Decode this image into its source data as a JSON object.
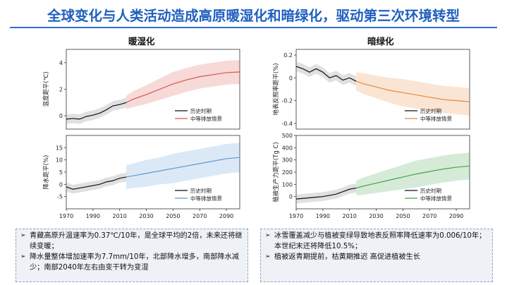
{
  "page": {
    "title": "全球变化与人类活动造成高原暖湿化和暗绿化，驱动第三次环境转型",
    "left_heading": "暖湿化",
    "right_heading": "暗绿化"
  },
  "notes_left": [
    "青藏高原升温速率为0.37℃/10年，是全球平均的2倍，未来还将继续变暖；",
    "降水量整体增加速率为7.7mm/10年，北部降水增多，南部降水减少；南部2040年左右由变干转为变湿"
  ],
  "notes_right": [
    "冰雪覆盖减少与植被变绿导致地表反照率降低速率为0.006/10年；本世纪末还将降低10.5%；",
    "植被返青期提前，枯黄期推迟 高促进植被生长"
  ],
  "colors": {
    "title": "#1f5fbf",
    "historical": "#111111",
    "temp_scenario": "#d9534f",
    "precip_scenario": "#5b9bd5",
    "albedo_scenario": "#e8893a",
    "gpp_scenario": "#3fa34d"
  },
  "chart_data": [
    {
      "type": "line",
      "id": "temperature",
      "xlabel": "",
      "ylabel": "温度距平(℃)",
      "xlim": [
        1970,
        2100
      ],
      "ylim": [
        -1,
        5
      ],
      "yticks": [
        0,
        2,
        4
      ],
      "xticks": [],
      "series": [
        {
          "name": "历史时期",
          "x": [
            1970,
            1975,
            1980,
            1985,
            1990,
            1995,
            2000,
            2005,
            2010,
            2015
          ],
          "y": [
            -0.25,
            -0.2,
            -0.25,
            -0.05,
            0.05,
            0.2,
            0.45,
            0.75,
            0.85,
            1.0
          ]
        },
        {
          "name": "中等排放情景",
          "x": [
            2015,
            2020,
            2030,
            2040,
            2050,
            2060,
            2070,
            2080,
            2090,
            2100
          ],
          "y": [
            1.0,
            1.25,
            1.6,
            2.0,
            2.4,
            2.7,
            2.95,
            3.1,
            3.25,
            3.3
          ],
          "band": [
            0.5,
            0.6,
            0.7,
            0.8,
            0.9,
            0.9,
            0.9,
            0.9,
            0.9,
            0.9
          ]
        }
      ]
    },
    {
      "type": "line",
      "id": "precipitation",
      "xlabel": "",
      "ylabel": "降水距平(%)",
      "xlim": [
        1970,
        2100
      ],
      "ylim": [
        -10,
        20
      ],
      "yticks": [
        -5,
        0,
        5,
        10,
        15
      ],
      "xticks": [
        1970,
        1990,
        2010,
        2030,
        2050,
        2070,
        2090
      ],
      "series": [
        {
          "name": "历史时期",
          "x": [
            1970,
            1975,
            1980,
            1985,
            1990,
            1995,
            2000,
            2005,
            2010,
            2015
          ],
          "y": [
            -1,
            -2,
            -1.5,
            -1,
            -0.5,
            0,
            1,
            1.5,
            2.5,
            3
          ]
        },
        {
          "name": "中等排放情景",
          "x": [
            2015,
            2020,
            2030,
            2040,
            2050,
            2060,
            2070,
            2080,
            2090,
            2100
          ],
          "y": [
            3,
            3.5,
            4.5,
            5.5,
            6.5,
            7.5,
            8.5,
            9.5,
            10.5,
            11
          ],
          "band": [
            5,
            5,
            5.5,
            5.5,
            6,
            6,
            6,
            6,
            6,
            6
          ]
        }
      ]
    },
    {
      "type": "line",
      "id": "albedo",
      "xlabel": "",
      "ylabel": "地表反照率距平(%)",
      "xlim": [
        1970,
        2100
      ],
      "ylim": [
        -0.45,
        0.25
      ],
      "yticks": [
        0.2,
        0,
        -0.2,
        -0.4
      ],
      "xticks": [],
      "series": [
        {
          "name": "历史时期",
          "x": [
            1970,
            1975,
            1980,
            1985,
            1990,
            1995,
            2000,
            2005,
            2010,
            2015
          ],
          "y": [
            0.1,
            0.08,
            0.05,
            0.08,
            0.05,
            0.0,
            0.02,
            -0.02,
            0.0,
            -0.03
          ]
        },
        {
          "name": "中等排放情景",
          "x": [
            2015,
            2020,
            2030,
            2040,
            2050,
            2060,
            2070,
            2080,
            2090,
            2100
          ],
          "y": [
            -0.03,
            -0.05,
            -0.08,
            -0.11,
            -0.13,
            -0.15,
            -0.17,
            -0.19,
            -0.2,
            -0.21
          ],
          "band": [
            0.08,
            0.09,
            0.1,
            0.11,
            0.12,
            0.12,
            0.12,
            0.12,
            0.12,
            0.12
          ]
        }
      ]
    },
    {
      "type": "line",
      "id": "gpp",
      "xlabel": "",
      "ylabel": "植被生产力距平(Tg C)",
      "xlim": [
        1970,
        2100
      ],
      "ylim": [
        -100,
        500
      ],
      "yticks": [
        0,
        100,
        200,
        300,
        400,
        500
      ],
      "xticks": [
        1970,
        1990,
        2010,
        2030,
        2050,
        2070,
        2090
      ],
      "series": [
        {
          "name": "历史时期",
          "x": [
            1970,
            1975,
            1980,
            1985,
            1990,
            1995,
            2000,
            2005,
            2010,
            2015
          ],
          "y": [
            -20,
            -15,
            -10,
            -5,
            0,
            10,
            20,
            40,
            60,
            70
          ]
        },
        {
          "name": "中等排放情景",
          "x": [
            2015,
            2020,
            2030,
            2040,
            2050,
            2060,
            2070,
            2080,
            2090,
            2100
          ],
          "y": [
            70,
            85,
            110,
            135,
            160,
            185,
            205,
            225,
            240,
            250
          ],
          "band": [
            60,
            70,
            80,
            90,
            100,
            110,
            110,
            110,
            110,
            110
          ]
        }
      ]
    }
  ]
}
